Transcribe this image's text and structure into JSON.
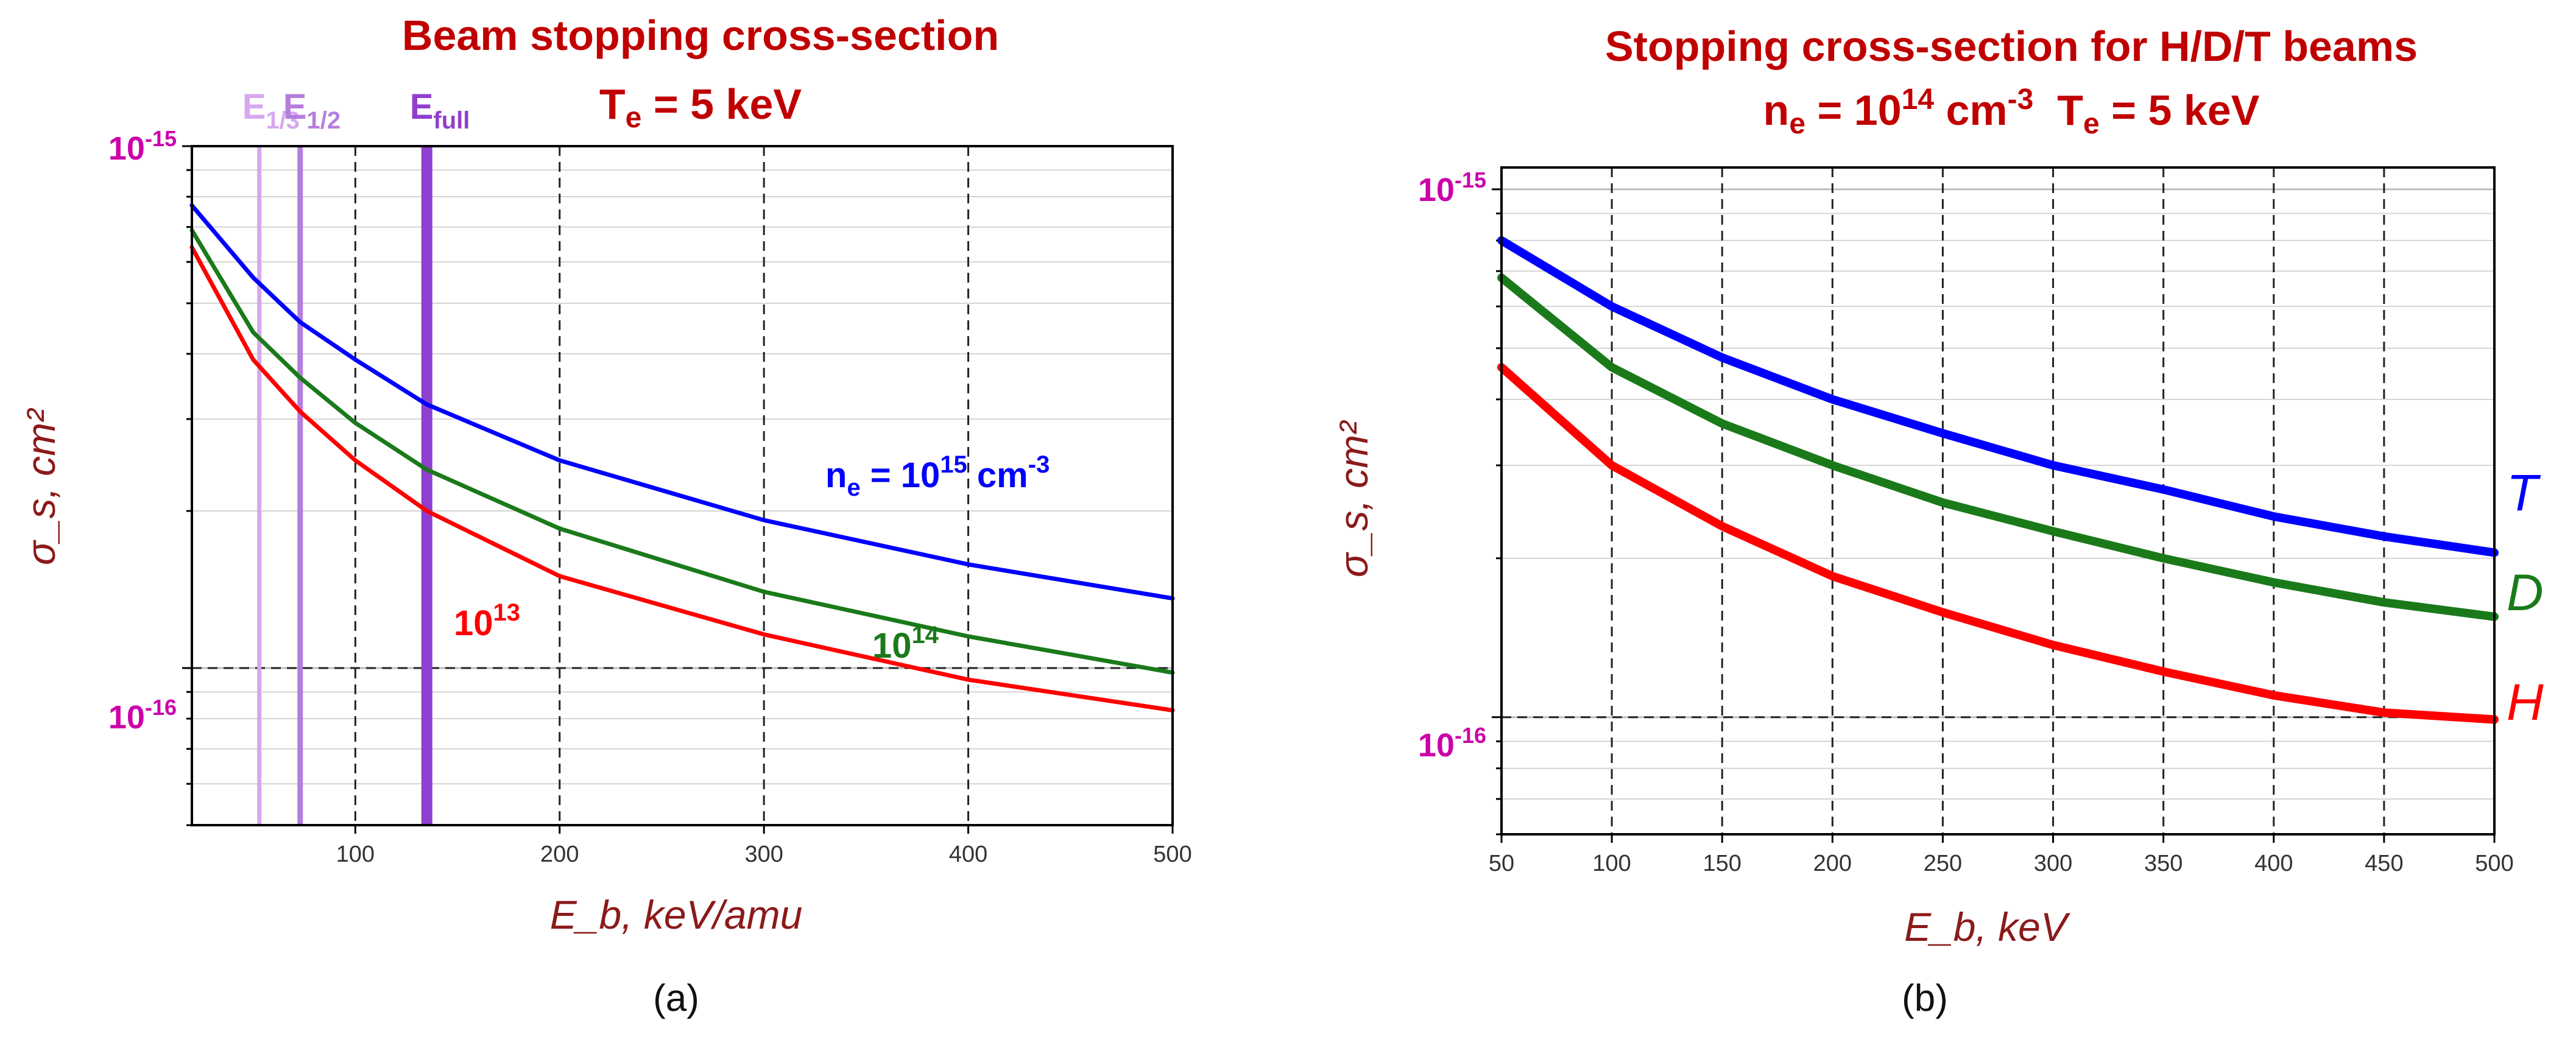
{
  "colors": {
    "title": "#c00000",
    "magenta": "#cc00aa",
    "axis_title": "#8b1a1a",
    "blue": "#0000ff",
    "green": "#1a7a1a",
    "red": "#ff0000",
    "e13": "#d7a7ef",
    "e12": "#b57edc",
    "efull": "#8f3fd0"
  },
  "chart_data": [
    {
      "type": "line",
      "panel": "a",
      "caption": "(a)",
      "title": "Beam stopping cross-section",
      "subtitle": {
        "main": "T",
        "sub": "e",
        "rest": " = 5 keV"
      },
      "xlabel": "E_b, keV/amu",
      "ylabel": "σ_s, cm²",
      "xlim": [
        20,
        500
      ],
      "ylim_log": [
        5e-17,
        1e-15
      ],
      "xticks": [
        100,
        200,
        300,
        400,
        500
      ],
      "ytick_labels": [
        {
          "value": 1e-15,
          "base": "10",
          "exp": "-15"
        },
        {
          "value": 1e-16,
          "base": "10",
          "exp": "-16"
        }
      ],
      "reference_line_y": 1e-16,
      "vertical_markers": [
        {
          "name": "E",
          "sub": "1/3",
          "x": 53
        },
        {
          "name": "E",
          "sub": "1/2",
          "x": 73
        },
        {
          "name": "E",
          "sub": "full",
          "x": 135
        }
      ],
      "series": [
        {
          "name": "n_e = 10^15 cm^-3",
          "label": {
            "base": "n",
            "sub": "e",
            "mid": " = 10",
            "sup": "15",
            "after": " cm",
            "sup2": "-3"
          },
          "color_key": "blue",
          "x": [
            20,
            50,
            73,
            100,
            135,
            200,
            300,
            400,
            500
          ],
          "y": [
            7.7e-16,
            5.6e-16,
            4.6e-16,
            3.9e-16,
            3.2e-16,
            2.5e-16,
            1.92e-16,
            1.58e-16,
            1.36e-16
          ]
        },
        {
          "name": "10^14",
          "label": {
            "base": "10",
            "sup": "14"
          },
          "color_key": "green",
          "x": [
            20,
            50,
            73,
            100,
            135,
            200,
            300,
            400,
            500
          ],
          "y": [
            6.9e-16,
            4.4e-16,
            3.6e-16,
            2.95e-16,
            2.4e-16,
            1.85e-16,
            1.4e-16,
            1.15e-16,
            9.8e-17
          ]
        },
        {
          "name": "10^13",
          "label": {
            "base": "10",
            "sup": "13"
          },
          "color_key": "red",
          "x": [
            20,
            50,
            73,
            100,
            135,
            200,
            300,
            400,
            500
          ],
          "y": [
            6.4e-16,
            3.9e-16,
            3.1e-16,
            2.5e-16,
            2e-16,
            1.5e-16,
            1.16e-16,
            9.5e-17,
            8.3e-17
          ]
        }
      ]
    },
    {
      "type": "line",
      "panel": "b",
      "caption": "(b)",
      "title": "Stopping cross-section for H/D/T beams",
      "subtitle": {
        "a": "n",
        "a_sub": "e",
        "b": " = 10",
        "b_sup": "14",
        "c": " cm",
        "c_sup": "-3",
        "d": "  T",
        "d_sub": "e",
        "e": " = 5 keV"
      },
      "xlabel": "E_b, keV",
      "ylabel": "σ_s, cm²",
      "xlim": [
        50,
        500
      ],
      "ylim_log": [
        6e-17,
        1.1e-15
      ],
      "xticks": [
        50,
        100,
        150,
        200,
        250,
        300,
        350,
        400,
        450,
        500
      ],
      "ytick_labels": [
        {
          "value": 1e-15,
          "base": "10",
          "exp": "-15"
        },
        {
          "value": 1e-16,
          "base": "10",
          "exp": "-16"
        }
      ],
      "reference_line_y": 1e-16,
      "series": [
        {
          "name": "T",
          "label": {
            "base": "T"
          },
          "color_key": "blue",
          "x": [
            50,
            100,
            150,
            200,
            250,
            300,
            350,
            400,
            450,
            500
          ],
          "y": [
            8e-16,
            6e-16,
            4.8e-16,
            4e-16,
            3.45e-16,
            3e-16,
            2.7e-16,
            2.4e-16,
            2.2e-16,
            2.05e-16
          ]
        },
        {
          "name": "D",
          "label": {
            "base": "D"
          },
          "color_key": "green",
          "x": [
            50,
            100,
            150,
            200,
            250,
            300,
            350,
            400,
            450,
            500
          ],
          "y": [
            6.8e-16,
            4.6e-16,
            3.6e-16,
            3e-16,
            2.55e-16,
            2.25e-16,
            2e-16,
            1.8e-16,
            1.65e-16,
            1.55e-16
          ]
        },
        {
          "name": "H",
          "label": {
            "base": "H"
          },
          "color_key": "red",
          "x": [
            50,
            100,
            150,
            200,
            250,
            300,
            350,
            400,
            450,
            500
          ],
          "y": [
            4.6e-16,
            3e-16,
            2.3e-16,
            1.85e-16,
            1.58e-16,
            1.37e-16,
            1.22e-16,
            1.1e-16,
            1.02e-16,
            9.9e-17
          ]
        }
      ]
    }
  ]
}
